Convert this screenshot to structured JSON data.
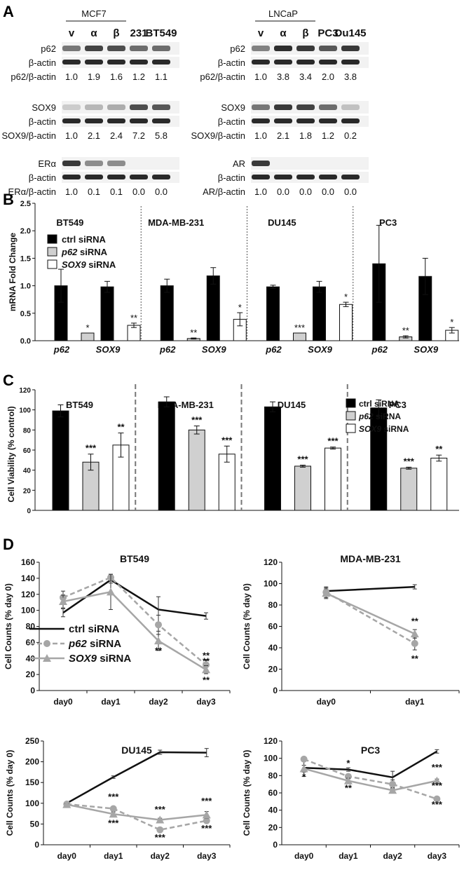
{
  "panels": {
    "A": {
      "letter": "A",
      "left": {
        "group_label": "MCF7",
        "lanes": [
          "v",
          "α",
          "β",
          "231",
          "BT549"
        ],
        "blots": [
          {
            "label": "p62",
            "loading": "β-actin",
            "ratio_label": "p62/β-actin",
            "ratios": [
              "1.0",
              "1.9",
              "1.6",
              "1.2",
              "1.1"
            ]
          },
          {
            "label": "SOX9",
            "loading": "β-actin",
            "ratio_label": "SOX9/β-actin",
            "ratios": [
              "1.0",
              "2.1",
              "2.4",
              "7.2",
              "5.8"
            ]
          },
          {
            "label": "ERα",
            "loading": "β-actin",
            "ratio_label": "ERα/β-actin",
            "ratios": [
              "1.0",
              "0.1",
              "0.1",
              "0.0",
              "0.0"
            ]
          }
        ]
      },
      "right": {
        "group_label": "LNCaP",
        "lanes": [
          "v",
          "α",
          "β",
          "PC3",
          "Du145"
        ],
        "blots": [
          {
            "label": "p62",
            "loading": "β-actin",
            "ratio_label": "p62/β-actin",
            "ratios": [
              "1.0",
              "3.8",
              "3.4",
              "2.0",
              "3.8"
            ]
          },
          {
            "label": "SOX9",
            "loading": "β-actin",
            "ratio_label": "SOX9/β-actin",
            "ratios": [
              "1.0",
              "2.1",
              "1.8",
              "1.2",
              "0.2"
            ]
          },
          {
            "label": "AR",
            "loading": "β-actin",
            "ratio_label": "AR/β-actin",
            "ratios": [
              "1.0",
              "0.0",
              "0.0",
              "0.0",
              "0.0"
            ]
          }
        ]
      }
    },
    "B": {
      "letter": "B"
    },
    "C": {
      "letter": "C"
    },
    "D": {
      "letter": "D"
    }
  },
  "colors": {
    "ctrl": "#000000",
    "p62": "#d0d0d0",
    "sox9": "#ffffff",
    "line_ctrl": "#111111",
    "line_si": "#a6a6a6"
  },
  "chart_data": [
    {
      "panel": "B",
      "type": "bar",
      "ylabel": "mRNA Fold Change",
      "ylim": [
        0,
        2.5
      ],
      "yticks": [
        "0.0",
        "0.5",
        "1.0",
        "1.5",
        "2.0",
        "2.5"
      ],
      "legend": [
        {
          "key": "ctrl",
          "text": "ctrl",
          "suffix": " siRNA"
        },
        {
          "key": "p62",
          "text": "p62",
          "suffix": " siRNA"
        },
        {
          "key": "sox9",
          "text": "SOX9",
          "suffix": " siRNA"
        }
      ],
      "groups": [
        {
          "name": "BT549",
          "genes": [
            {
              "gene": "p62",
              "bars": [
                {
                  "series": "ctrl",
                  "value": 1.0,
                  "err": 0.3
                },
                {
                  "series": "p62",
                  "value": 0.14,
                  "err": 0,
                  "sig": "*"
                }
              ]
            },
            {
              "gene": "SOX9",
              "bars": [
                {
                  "series": "ctrl",
                  "value": 0.98,
                  "err": 0.1
                },
                {
                  "series": "sox9",
                  "value": 0.28,
                  "err": 0.04,
                  "sig": "**"
                }
              ]
            }
          ]
        },
        {
          "name": "MDA-MB-231",
          "genes": [
            {
              "gene": "p62",
              "bars": [
                {
                  "series": "ctrl",
                  "value": 1.0,
                  "err": 0.12
                },
                {
                  "series": "p62",
                  "value": 0.04,
                  "err": 0.01,
                  "sig": "**"
                }
              ]
            },
            {
              "gene": "SOX9",
              "bars": [
                {
                  "series": "ctrl",
                  "value": 1.18,
                  "err": 0.15
                },
                {
                  "series": "sox9",
                  "value": 0.39,
                  "err": 0.12,
                  "sig": "*"
                }
              ]
            }
          ]
        },
        {
          "name": "DU145",
          "genes": [
            {
              "gene": "p62",
              "bars": [
                {
                  "series": "ctrl",
                  "value": 0.98,
                  "err": 0.03
                },
                {
                  "series": "p62",
                  "value": 0.14,
                  "err": 0,
                  "sig": "***"
                }
              ]
            },
            {
              "gene": "SOX9",
              "bars": [
                {
                  "series": "ctrl",
                  "value": 0.98,
                  "err": 0.1
                },
                {
                  "series": "sox9",
                  "value": 0.66,
                  "err": 0.04,
                  "sig": "*"
                }
              ]
            }
          ]
        },
        {
          "name": "PC3",
          "genes": [
            {
              "gene": "p62",
              "bars": [
                {
                  "series": "ctrl",
                  "value": 1.4,
                  "err": 0.7
                },
                {
                  "series": "p62",
                  "value": 0.07,
                  "err": 0.02,
                  "sig": "**"
                }
              ]
            },
            {
              "gene": "SOX9",
              "bars": [
                {
                  "series": "ctrl",
                  "value": 1.17,
                  "err": 0.33
                },
                {
                  "series": "sox9",
                  "value": 0.19,
                  "err": 0.05,
                  "sig": "*"
                }
              ]
            }
          ]
        }
      ]
    },
    {
      "panel": "C",
      "type": "bar",
      "ylabel": "Cell Viability (% control)",
      "ylim": [
        0,
        120
      ],
      "yticks": [
        "0",
        "20",
        "40",
        "60",
        "80",
        "100",
        "120"
      ],
      "legend": [
        {
          "key": "ctrl",
          "text": "ctrl",
          "suffix": " siRNA"
        },
        {
          "key": "p62",
          "text": "p62",
          "suffix": " siRNA"
        },
        {
          "key": "sox9",
          "text": "SOX9",
          "suffix": " siRNA"
        }
      ],
      "groups": [
        {
          "name": "BT549",
          "bars": [
            {
              "series": "ctrl",
              "value": 99,
              "err": 6
            },
            {
              "series": "p62",
              "value": 48,
              "err": 8,
              "sig": "***"
            },
            {
              "series": "sox9",
              "value": 65,
              "err": 12,
              "sig": "**"
            }
          ]
        },
        {
          "name": "MDA-MB-231",
          "bars": [
            {
              "series": "ctrl",
              "value": 108,
              "err": 5
            },
            {
              "series": "p62",
              "value": 80,
              "err": 4,
              "sig": "***"
            },
            {
              "series": "sox9",
              "value": 56,
              "err": 8,
              "sig": "***"
            }
          ]
        },
        {
          "name": "DU145",
          "bars": [
            {
              "series": "ctrl",
              "value": 103,
              "err": 5
            },
            {
              "series": "p62",
              "value": 44,
              "err": 1,
              "sig": "***"
            },
            {
              "series": "sox9",
              "value": 62,
              "err": 1,
              "sig": "***"
            }
          ]
        },
        {
          "name": "PC3",
          "bars": [
            {
              "series": "ctrl",
              "value": 102,
              "err": 8
            },
            {
              "series": "p62",
              "value": 42,
              "err": 1,
              "sig": "***"
            },
            {
              "series": "sox9",
              "value": 52,
              "err": 3,
              "sig": "**"
            }
          ]
        }
      ]
    },
    {
      "panel": "D",
      "type": "line",
      "title": "BT549",
      "ylabel": "Cell Counts (% day 0)",
      "ylim": [
        0,
        160
      ],
      "yticks": [
        "0",
        "20",
        "40",
        "60",
        "80",
        "100",
        "120",
        "140",
        "160"
      ],
      "categories": [
        "day0",
        "day1",
        "day2",
        "day3"
      ],
      "series": [
        {
          "key": "ctrl",
          "values": [
            97,
            138,
            101,
            93
          ],
          "err": [
            5,
            4,
            16,
            4
          ]
        },
        {
          "key": "p62",
          "values": [
            116,
            141,
            82,
            32
          ],
          "err": [
            8,
            4,
            12,
            6
          ]
        },
        {
          "key": "sox9",
          "values": [
            111,
            123,
            62,
            26
          ],
          "err": [
            8,
            22,
            12,
            5
          ]
        }
      ],
      "annotations": [
        {
          "x": 2,
          "y": 46,
          "text": "**"
        },
        {
          "x": 3,
          "y": 40,
          "text": "**"
        },
        {
          "x": 3,
          "y": 33,
          "text": "**"
        },
        {
          "x": 3,
          "y": 9,
          "text": "**"
        }
      ],
      "legend": [
        {
          "key": "ctrl",
          "text": "ctrl",
          "suffix": " siRNA"
        },
        {
          "key": "p62",
          "text": "p62",
          "suffix": " siRNA"
        },
        {
          "key": "sox9",
          "text": "SOX9",
          "suffix": " siRNA"
        }
      ]
    },
    {
      "panel": "D",
      "type": "line",
      "title": "MDA-MB-231",
      "ylabel": "Cell Counts (% day 0)",
      "ylim": [
        0,
        120
      ],
      "yticks": [
        "0",
        "20",
        "40",
        "60",
        "80",
        "100",
        "120"
      ],
      "categories": [
        "day0",
        "day1"
      ],
      "series": [
        {
          "key": "ctrl",
          "values": [
            93,
            97
          ],
          "err": [
            2,
            2
          ]
        },
        {
          "key": "p62",
          "values": [
            92,
            44
          ],
          "err": [
            5,
            6
          ]
        },
        {
          "key": "sox9",
          "values": [
            91,
            53
          ],
          "err": [
            5,
            4
          ]
        }
      ],
      "annotations": [
        {
          "x": 1,
          "y": 62,
          "text": "**"
        },
        {
          "x": 1,
          "y": 27,
          "text": "**"
        }
      ]
    },
    {
      "panel": "D",
      "type": "line",
      "title": "DU145",
      "ylabel": "Cell Counts (% day 0)",
      "ylim": [
        0,
        250
      ],
      "yticks": [
        "0",
        "50",
        "100",
        "150",
        "200",
        "250"
      ],
      "categories": [
        "day0",
        "day1",
        "day2",
        "day3"
      ],
      "series": [
        {
          "key": "ctrl",
          "values": [
            100,
            163,
            223,
            222
          ],
          "err": [
            2,
            3,
            5,
            10
          ]
        },
        {
          "key": "p62",
          "values": [
            98,
            87,
            36,
            58
          ],
          "err": [
            2,
            4,
            3,
            4
          ]
        },
        {
          "key": "sox9",
          "values": [
            97,
            74,
            60,
            72
          ],
          "err": [
            2,
            5,
            4,
            8
          ]
        }
      ],
      "annotations": [
        {
          "x": 1,
          "y": 108,
          "text": "***"
        },
        {
          "x": 1,
          "y": 45,
          "text": "***"
        },
        {
          "x": 2,
          "y": 78,
          "text": "***"
        },
        {
          "x": 2,
          "y": 10,
          "text": "***"
        },
        {
          "x": 3,
          "y": 98,
          "text": "***"
        },
        {
          "x": 3,
          "y": 32,
          "text": "***"
        }
      ]
    },
    {
      "panel": "D",
      "type": "line",
      "title": "PC3",
      "ylabel": "Cell Counts (% day 0)",
      "ylim": [
        0,
        120
      ],
      "yticks": [
        "0",
        "20",
        "40",
        "60",
        "80",
        "100",
        "120"
      ],
      "categories": [
        "day0",
        "day1",
        "day2",
        "day3"
      ],
      "series": [
        {
          "key": "ctrl",
          "values": [
            89,
            87,
            78,
            108
          ],
          "err": [
            10,
            2,
            7,
            2
          ]
        },
        {
          "key": "p62",
          "values": [
            99,
            79,
            70,
            53
          ],
          "err": [
            2,
            2,
            5,
            2
          ]
        },
        {
          "key": "sox9",
          "values": [
            88,
            74,
            63,
            74
          ],
          "err": [
            4,
            3,
            3,
            2
          ]
        }
      ],
      "annotations": [
        {
          "x": 0,
          "y": 75,
          "text": "*"
        },
        {
          "x": 1,
          "y": 91,
          "text": "*"
        },
        {
          "x": 1,
          "y": 62,
          "text": "**"
        },
        {
          "x": 3,
          "y": 86,
          "text": "***"
        },
        {
          "x": 3,
          "y": 65,
          "text": "***"
        },
        {
          "x": 3,
          "y": 43,
          "text": "***"
        }
      ]
    }
  ]
}
